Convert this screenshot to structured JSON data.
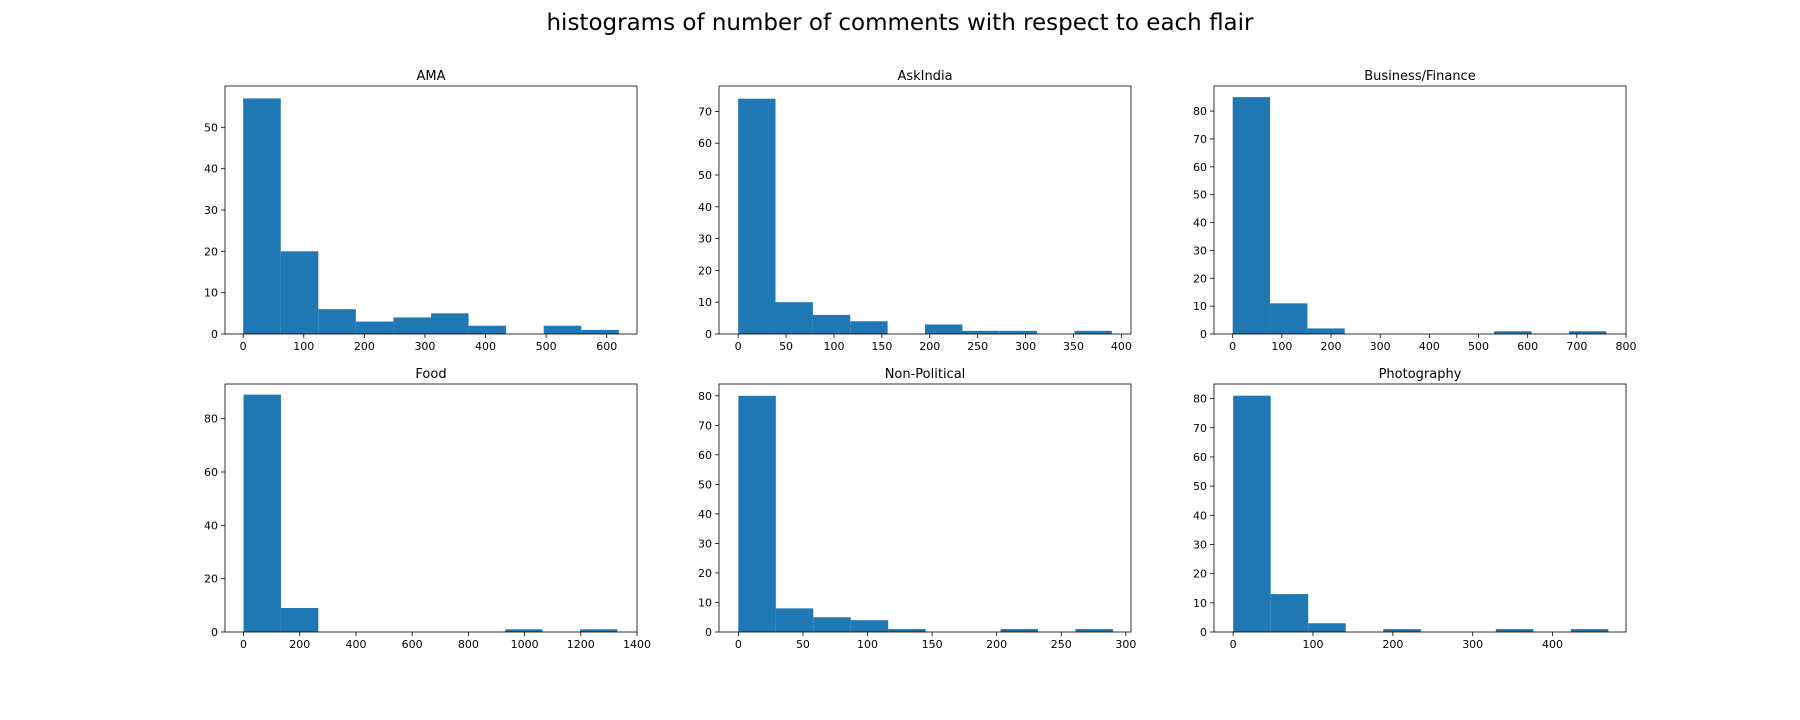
{
  "figure": {
    "suptitle": "histograms of number of comments with respect to each flair"
  },
  "chart_data": [
    {
      "type": "bar",
      "title": "AMA",
      "xlabel": "",
      "ylabel": "",
      "bin_edges": [
        0,
        62,
        124,
        186,
        248,
        310,
        372,
        434,
        496,
        558,
        620
      ],
      "values": [
        57,
        20,
        6,
        3,
        4,
        5,
        2,
        0,
        2,
        1
      ],
      "xlim": [
        -30,
        650
      ],
      "ylim": [
        0,
        60
      ],
      "xticks": [
        0,
        100,
        200,
        300,
        400,
        500,
        600
      ],
      "yticks": [
        0,
        10,
        20,
        30,
        40,
        50
      ],
      "color": "#1f77b4",
      "grid": false
    },
    {
      "type": "bar",
      "title": "AskIndia",
      "xlabel": "",
      "ylabel": "",
      "bin_edges": [
        0,
        39,
        78,
        117,
        156,
        195,
        234,
        273,
        312,
        351,
        390
      ],
      "values": [
        74,
        10,
        6,
        4,
        0,
        3,
        1,
        1,
        0,
        1
      ],
      "xlim": [
        -20,
        410
      ],
      "ylim": [
        0,
        78
      ],
      "xticks": [
        0,
        50,
        100,
        150,
        200,
        250,
        300,
        350,
        400
      ],
      "yticks": [
        0,
        10,
        20,
        30,
        40,
        50,
        60,
        70
      ],
      "color": "#1f77b4",
      "grid": false
    },
    {
      "type": "bar",
      "title": "Business/Finance",
      "xlabel": "",
      "ylabel": "",
      "bin_edges": [
        0,
        76,
        152,
        228,
        304,
        380,
        456,
        532,
        608,
        684,
        760
      ],
      "values": [
        85,
        11,
        2,
        0,
        0,
        0,
        0,
        1,
        0,
        1
      ],
      "xlim": [
        -38,
        800
      ],
      "ylim": [
        0,
        89
      ],
      "xticks": [
        0,
        100,
        200,
        300,
        400,
        500,
        600,
        700,
        800
      ],
      "yticks": [
        0,
        10,
        20,
        30,
        40,
        50,
        60,
        70,
        80
      ],
      "color": "#1f77b4",
      "grid": false
    },
    {
      "type": "bar",
      "title": "Food",
      "xlabel": "",
      "ylabel": "",
      "bin_edges": [
        0,
        133,
        266,
        399,
        532,
        665,
        798,
        931,
        1064,
        1197,
        1330
      ],
      "values": [
        89,
        9,
        0,
        0,
        0,
        0,
        0,
        1,
        0,
        1
      ],
      "xlim": [
        -66,
        1400
      ],
      "ylim": [
        0,
        93
      ],
      "xticks": [
        0,
        200,
        400,
        600,
        800,
        1000,
        1200,
        1400
      ],
      "yticks": [
        0,
        20,
        40,
        60,
        80
      ],
      "color": "#1f77b4",
      "grid": false
    },
    {
      "type": "bar",
      "title": "Non-Political",
      "xlabel": "",
      "ylabel": "",
      "bin_edges": [
        0,
        29,
        58,
        87,
        116,
        145,
        174,
        203,
        232,
        261,
        290
      ],
      "values": [
        80,
        8,
        5,
        4,
        1,
        0,
        0,
        1,
        0,
        1
      ],
      "xlim": [
        -15,
        304
      ],
      "ylim": [
        0,
        84
      ],
      "xticks": [
        0,
        50,
        100,
        150,
        200,
        250,
        300
      ],
      "yticks": [
        0,
        10,
        20,
        30,
        40,
        50,
        60,
        70,
        80
      ],
      "color": "#1f77b4",
      "grid": false
    },
    {
      "type": "bar",
      "title": "Photography",
      "xlabel": "",
      "ylabel": "",
      "bin_edges": [
        0,
        47,
        94,
        141,
        188,
        235,
        282,
        329,
        376,
        423,
        470
      ],
      "values": [
        81,
        13,
        3,
        0,
        1,
        0,
        0,
        1,
        0,
        1
      ],
      "xlim": [
        -24,
        492
      ],
      "ylim": [
        0,
        85
      ],
      "xticks": [
        0,
        100,
        200,
        300,
        400
      ],
      "yticks": [
        0,
        10,
        20,
        30,
        40,
        50,
        60,
        70,
        80
      ],
      "color": "#1f77b4",
      "grid": false
    }
  ]
}
